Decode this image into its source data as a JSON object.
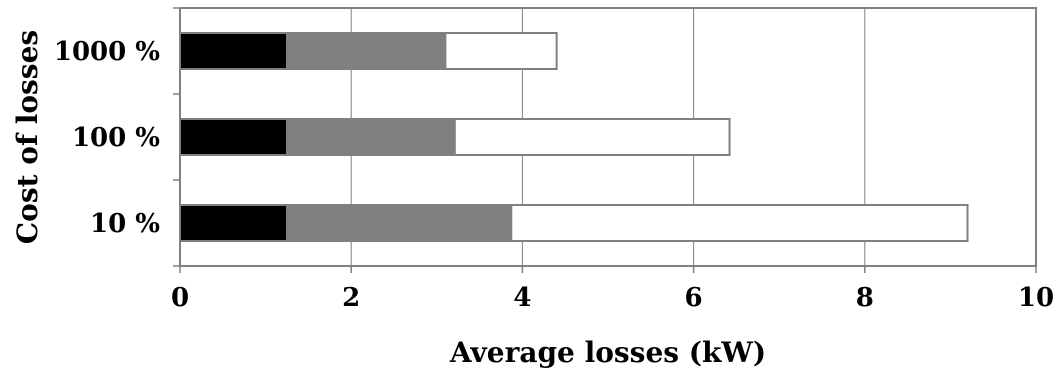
{
  "chart_data": {
    "type": "bar",
    "orientation": "horizontal",
    "stacked": true,
    "categories": [
      "10 %",
      "100 %",
      "1000 %"
    ],
    "series": [
      {
        "values": [
          1.25,
          1.25,
          1.25
        ],
        "color": "#000000"
      },
      {
        "values": [
          2.62,
          1.96,
          1.85
        ],
        "color": "#808080"
      },
      {
        "values": [
          5.33,
          3.21,
          1.3
        ],
        "color": "#ffffff"
      }
    ],
    "xlabel": "Average losses (kW)",
    "ylabel": "Cost of losses",
    "xlim": [
      0,
      10
    ],
    "x_ticks": [
      "0",
      "2",
      "4",
      "6",
      "8",
      "10"
    ],
    "grid": "vertical",
    "legend": "none"
  }
}
